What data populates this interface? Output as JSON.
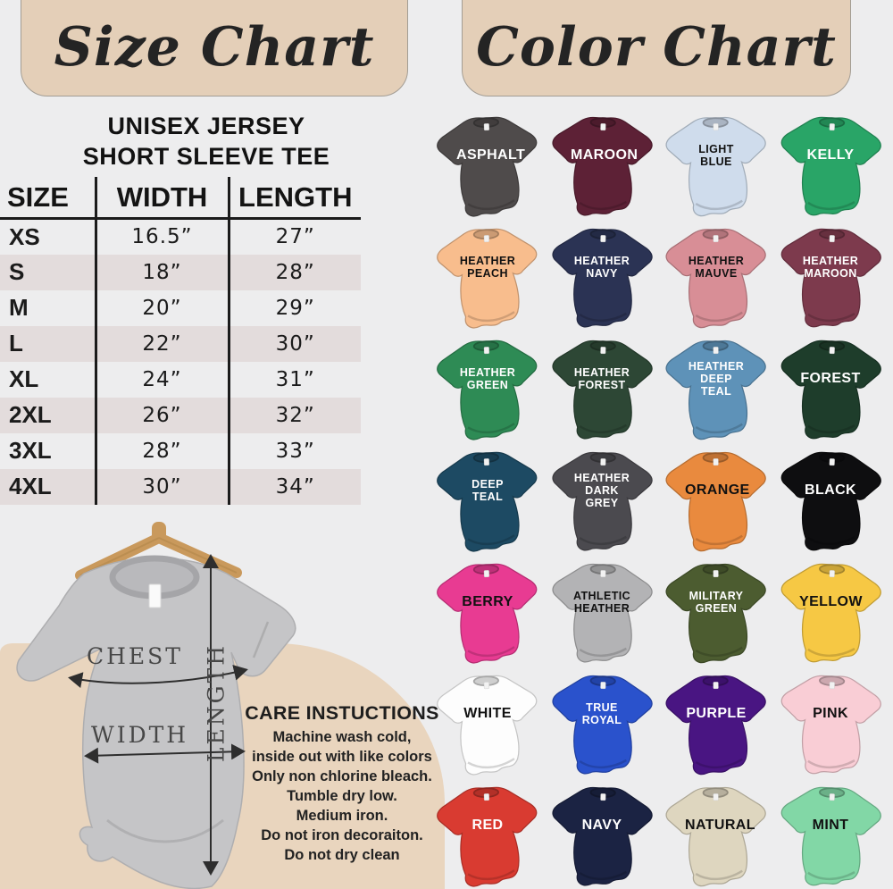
{
  "colors": {
    "background": "#ededee",
    "card_beige": "#e4cfb8",
    "blob_beige": "#e9d5be",
    "table_stripe": "#e3dcdc",
    "mock_shirt_gray": "#c5c5c7",
    "hanger_wood": "#c9995c"
  },
  "size_chart": {
    "title": "Size Chart",
    "subtitle_line1": "UNISEX JERSEY",
    "subtitle_line2": "SHORT SLEEVE TEE",
    "table": {
      "headers": [
        "SIZE",
        "WIDTH",
        "LENGTH"
      ],
      "rows": [
        {
          "size": "XS",
          "width": "16.5”",
          "length": "27”"
        },
        {
          "size": "S",
          "width": "18”",
          "length": "28”"
        },
        {
          "size": "M",
          "width": "20”",
          "length": "29”"
        },
        {
          "size": "L",
          "width": "22”",
          "length": "30”"
        },
        {
          "size": "XL",
          "width": "24”",
          "length": "31”"
        },
        {
          "size": "2XL",
          "width": "26”",
          "length": "32”"
        },
        {
          "size": "3XL",
          "width": "28”",
          "length": "33”"
        },
        {
          "size": "4XL",
          "width": "30”",
          "length": "34”"
        }
      ]
    },
    "measure_labels": {
      "chest": "CHEST",
      "width": "WIDTH",
      "length": "LENGTH"
    },
    "care": {
      "heading": "CARE INSTUCTIONS",
      "lines": [
        "Machine wash cold,",
        "inside out with like colors",
        "Only non chlorine bleach.",
        "Tumble dry low.",
        "Medium iron.",
        "Do not iron decoraiton.",
        "Do not dry clean"
      ]
    }
  },
  "color_chart": {
    "title": "Color Chart",
    "shirts": [
      {
        "label": "ASPHALT",
        "color": "#4f4b4b",
        "text": "#ffffff"
      },
      {
        "label": "MAROON",
        "color": "#5d2136",
        "text": "#ffffff"
      },
      {
        "label": "LIGHT BLUE",
        "color": "#cfdcec",
        "text": "#111111"
      },
      {
        "label": "KELLY",
        "color": "#29a567",
        "text": "#ffffff"
      },
      {
        "label": "HEATHER PEACH",
        "color": "#f8bd8d",
        "text": "#111111"
      },
      {
        "label": "HEATHER NAVY",
        "color": "#2b3354",
        "text": "#ffffff"
      },
      {
        "label": "HEATHER MAUVE",
        "color": "#d88e96",
        "text": "#111111"
      },
      {
        "label": "HEATHER MAROON",
        "color": "#7d3a4d",
        "text": "#ffffff"
      },
      {
        "label": "HEATHER GREEN",
        "color": "#2e8b55",
        "text": "#ffffff"
      },
      {
        "label": "HEATHER FOREST",
        "color": "#2d4735",
        "text": "#ffffff"
      },
      {
        "label": "HEATHER DEEP TEAL",
        "color": "#5e92b8",
        "text": "#ffffff"
      },
      {
        "label": "FOREST",
        "color": "#1e3d2b",
        "text": "#ffffff"
      },
      {
        "label": "DEEP TEAL",
        "color": "#1d4a63",
        "text": "#ffffff"
      },
      {
        "label": "HEATHER DARK GREY",
        "color": "#4b4a4f",
        "text": "#ffffff"
      },
      {
        "label": "ORANGE",
        "color": "#e98a3e",
        "text": "#111111"
      },
      {
        "label": "BLACK",
        "color": "#0e0e10",
        "text": "#ffffff"
      },
      {
        "label": "BERRY",
        "color": "#e83b92",
        "text": "#111111"
      },
      {
        "label": "ATHLETIC HEATHER",
        "color": "#b3b3b5",
        "text": "#111111"
      },
      {
        "label": "MILITARY GREEN",
        "color": "#4c5c30",
        "text": "#ffffff"
      },
      {
        "label": "YELLOW",
        "color": "#f6c844",
        "text": "#111111"
      },
      {
        "label": "WHITE",
        "color": "#fdfdfd",
        "text": "#111111"
      },
      {
        "label": "TRUE ROYAL",
        "color": "#2a52cc",
        "text": "#ffffff"
      },
      {
        "label": "PURPLE",
        "color": "#491582",
        "text": "#ffffff"
      },
      {
        "label": "PINK",
        "color": "#f9cdd5",
        "text": "#111111"
      },
      {
        "label": "RED",
        "color": "#d93b31",
        "text": "#ffffff"
      },
      {
        "label": "NAVY",
        "color": "#1b2343",
        "text": "#ffffff"
      },
      {
        "label": "NATURAL",
        "color": "#ded6bf",
        "text": "#111111"
      },
      {
        "label": "MINT",
        "color": "#82d7a6",
        "text": "#111111"
      }
    ]
  }
}
